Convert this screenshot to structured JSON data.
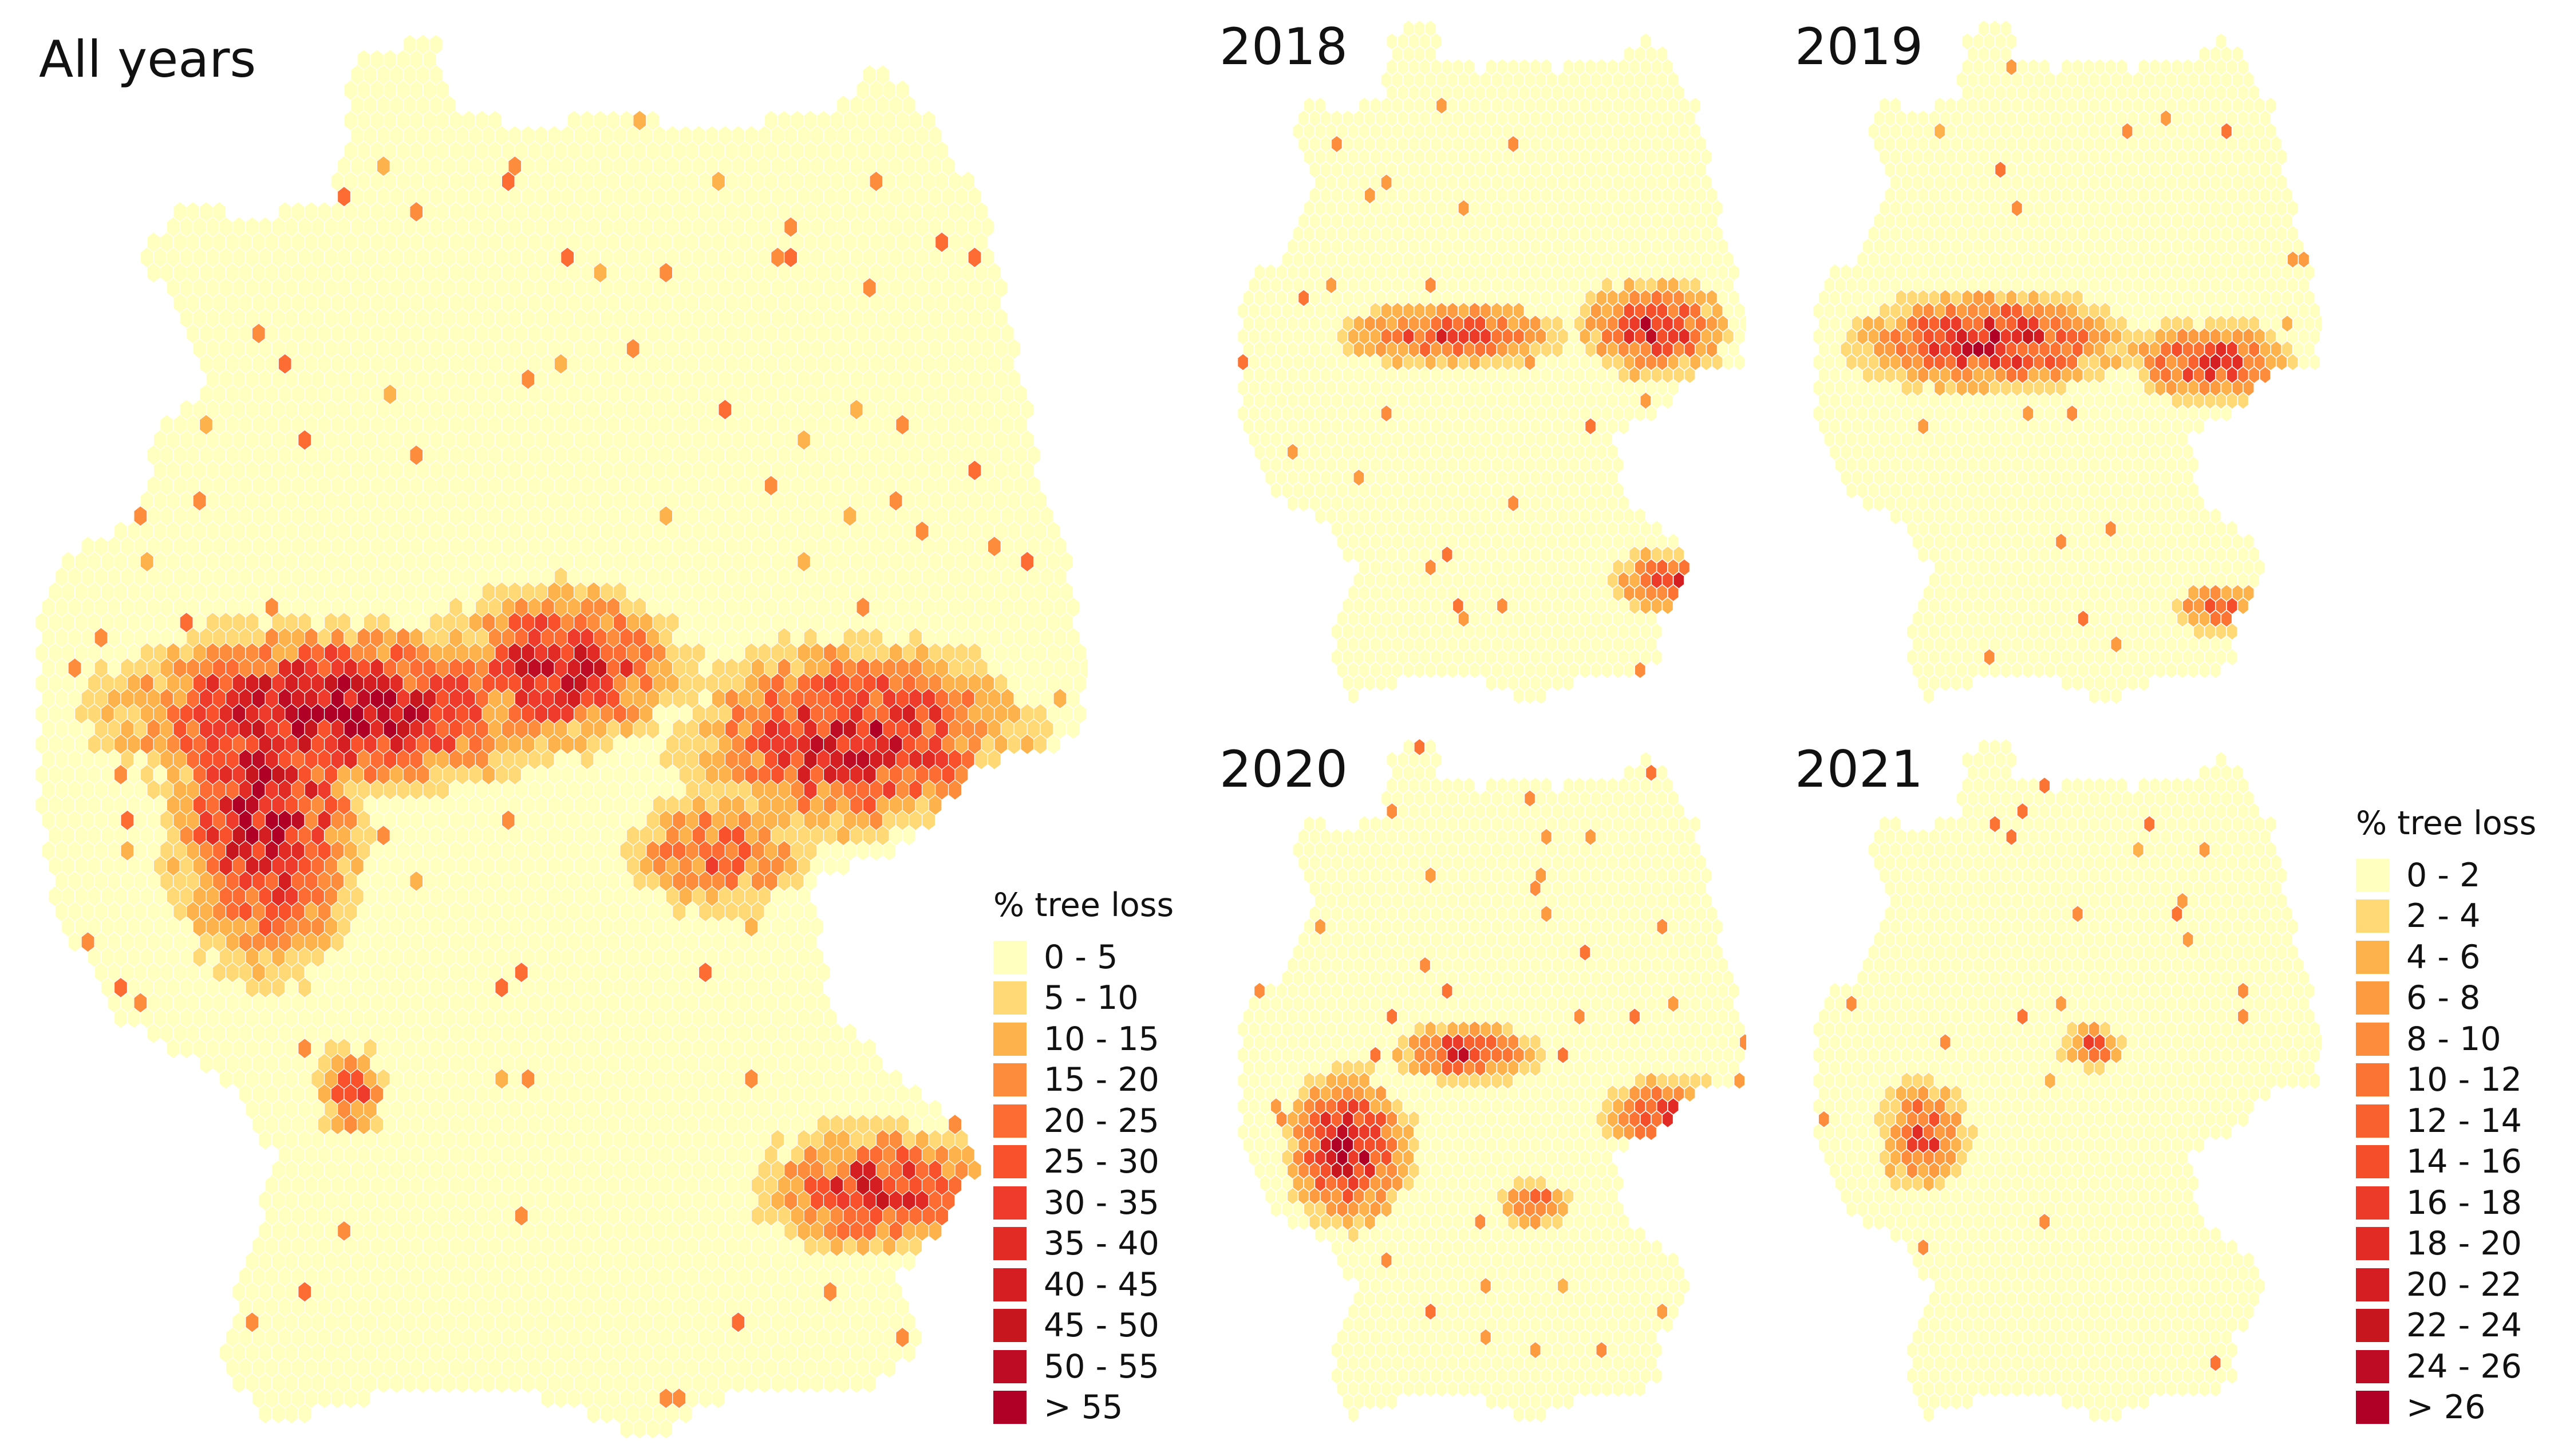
{
  "panels": [
    {
      "id": "all",
      "title": "All years"
    },
    {
      "id": "y2018",
      "title": "2018"
    },
    {
      "id": "y2019",
      "title": "2019"
    },
    {
      "id": "y2020",
      "title": "2020"
    },
    {
      "id": "y2021",
      "title": "2021"
    }
  ],
  "legends": [
    {
      "id": "legend-all-years",
      "title": "% tree loss",
      "classes": [
        {
          "label": "0 - 5",
          "color": "#ffffc0"
        },
        {
          "label": "5 - 10",
          "color": "#fed976"
        },
        {
          "label": "10 - 15",
          "color": "#feb24c"
        },
        {
          "label": "15 - 20",
          "color": "#fd8d3c"
        },
        {
          "label": "20 - 25",
          "color": "#fc6c33"
        },
        {
          "label": "25 - 30",
          "color": "#f8512b"
        },
        {
          "label": "30 - 35",
          "color": "#ef3b2c"
        },
        {
          "label": "35 - 40",
          "color": "#e22b25"
        },
        {
          "label": "40 - 45",
          "color": "#d41e22"
        },
        {
          "label": "45 - 50",
          "color": "#c8161e"
        },
        {
          "label": "50 - 55",
          "color": "#bd0c24"
        },
        {
          "label": "> 55",
          "color": "#b10026"
        }
      ]
    },
    {
      "id": "legend-annual",
      "title": "% tree loss",
      "classes": [
        {
          "label": "0 - 2",
          "color": "#ffffc0"
        },
        {
          "label": "2 - 4",
          "color": "#fed976"
        },
        {
          "label": "4 - 6",
          "color": "#feb24c"
        },
        {
          "label": "6 - 8",
          "color": "#fd9b41"
        },
        {
          "label": "8 - 10",
          "color": "#fd8d3c"
        },
        {
          "label": "10 - 12",
          "color": "#fc7434"
        },
        {
          "label": "12 - 14",
          "color": "#f9612e"
        },
        {
          "label": "14 - 16",
          "color": "#f44e2b"
        },
        {
          "label": "16 - 18",
          "color": "#ec3b28"
        },
        {
          "label": "18 - 20",
          "color": "#e22b25"
        },
        {
          "label": "20 - 22",
          "color": "#d41e22"
        },
        {
          "label": "22 - 24",
          "color": "#c8161e"
        },
        {
          "label": "24 - 26",
          "color": "#bd0c24"
        },
        {
          "label": "> 26",
          "color": "#b10026"
        }
      ]
    }
  ]
}
